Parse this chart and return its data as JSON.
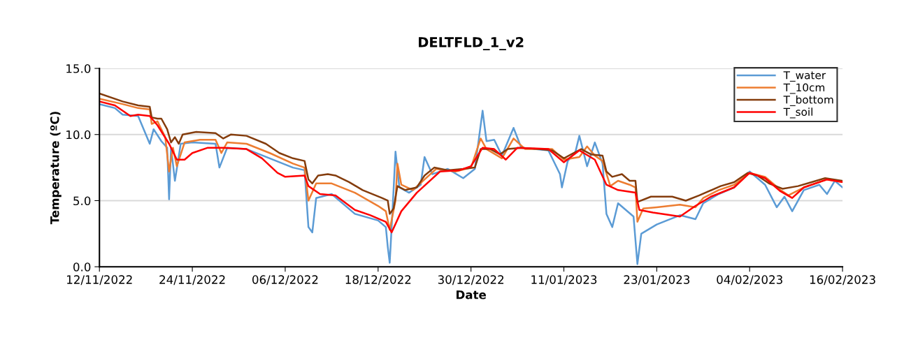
{
  "chart_data": {
    "type": "line",
    "title": "DELTFLD_1_v2",
    "xlabel": "Date",
    "ylabel": "Temperature (ºC)",
    "xlim": [
      "2022-11-12",
      "2023-02-16"
    ],
    "xticks": [
      {
        "value": "2022-11-12",
        "label": "12/11/2022"
      },
      {
        "value": "2022-11-24",
        "label": "24/11/2022"
      },
      {
        "value": "2022-12-06",
        "label": "06/12/2022"
      },
      {
        "value": "2022-12-18",
        "label": "18/12/2022"
      },
      {
        "value": "2022-12-30",
        "label": "30/12/2022"
      },
      {
        "value": "2023-01-11",
        "label": "11/01/2023"
      },
      {
        "value": "2023-01-23",
        "label": "23/01/2023"
      },
      {
        "value": "2023-02-04",
        "label": "04/02/2023"
      },
      {
        "value": "2023-02-16",
        "label": "16/02/2023"
      }
    ],
    "ylim": [
      0,
      15
    ],
    "yticks": [
      {
        "value": 0,
        "label": "0.0"
      },
      {
        "value": 5,
        "label": "5.0"
      },
      {
        "value": 10,
        "label": "10.0"
      },
      {
        "value": 15,
        "label": "15.0"
      }
    ],
    "grid": "y",
    "legend": "top right",
    "marker": "none",
    "line_style": "solid",
    "series": [
      {
        "name": "T_water",
        "color": "#5b9bd5",
        "x": [
          "2022-11-12",
          "2022-11-14",
          "2022-11-15",
          "2022-11-17",
          "2022-11-18T12:00",
          "2022-11-19",
          "2022-11-20",
          "2022-11-20T18:00",
          "2022-11-21",
          "2022-11-21T06:00",
          "2022-11-21T18:00",
          "2022-11-22T12:00",
          "2022-11-24",
          "2022-11-27",
          "2022-11-27T12:00",
          "2022-11-28T12:00",
          "2022-12-01",
          "2022-12-04",
          "2022-12-07",
          "2022-12-08T12:00",
          "2022-12-09",
          "2022-12-09T12:00",
          "2022-12-10",
          "2022-12-12",
          "2022-12-15",
          "2022-12-18",
          "2022-12-19",
          "2022-12-19T06:00",
          "2022-12-19T12:00",
          "2022-12-19T18:00",
          "2022-12-20T06:00",
          "2022-12-20T18:00",
          "2022-12-22",
          "2022-12-23T12:00",
          "2022-12-24",
          "2022-12-25",
          "2022-12-27",
          "2022-12-29",
          "2022-12-30T12:00",
          "2022-12-31T12:00",
          "2023-01-01",
          "2023-01-02",
          "2023-01-03",
          "2023-01-04T12:00",
          "2023-01-05T12:00",
          "2023-01-09",
          "2023-01-10T12:00",
          "2023-01-10T18:00",
          "2023-01-11T12:00",
          "2023-01-12T12:00",
          "2023-01-13",
          "2023-01-14",
          "2023-01-15",
          "2023-01-16",
          "2023-01-16T12:00",
          "2023-01-17T06:00",
          "2023-01-18",
          "2023-01-19",
          "2023-01-20",
          "2023-01-20T12:00",
          "2023-01-21",
          "2023-01-23",
          "2023-01-26",
          "2023-01-28",
          "2023-01-29",
          "2023-01-31",
          "2023-02-02",
          "2023-02-04",
          "2023-02-06",
          "2023-02-07T12:00",
          "2023-02-08T12:00",
          "2023-02-09T12:00",
          "2023-02-11",
          "2023-02-13",
          "2023-02-14",
          "2023-02-15",
          "2023-02-16"
        ],
        "values": [
          12.3,
          12.0,
          11.5,
          11.4,
          9.3,
          10.4,
          9.5,
          9.0,
          5.1,
          9.0,
          6.5,
          9.3,
          9.4,
          9.3,
          7.5,
          9.0,
          8.9,
          8.2,
          7.5,
          7.3,
          3.0,
          2.6,
          5.2,
          5.5,
          4.0,
          3.5,
          3.0,
          1.5,
          0.3,
          3.0,
          8.7,
          6.0,
          5.6,
          6.2,
          8.3,
          7.0,
          7.4,
          6.7,
          7.4,
          11.8,
          9.5,
          9.6,
          8.4,
          10.5,
          9.0,
          8.8,
          7.0,
          6.0,
          8.0,
          8.7,
          9.9,
          7.6,
          9.4,
          7.8,
          4.0,
          3.0,
          4.8,
          4.3,
          3.8,
          0.2,
          2.5,
          3.2,
          3.9,
          3.6,
          4.8,
          5.5,
          6.0,
          7.2,
          6.2,
          4.5,
          5.3,
          4.2,
          5.8,
          6.2,
          5.5,
          6.5,
          6.0
        ]
      },
      {
        "name": "T_10cm",
        "color": "#ed7d31",
        "x": [
          "2022-11-12",
          "2022-11-15",
          "2022-11-17",
          "2022-11-18T12:00",
          "2022-11-18T18:00",
          "2022-11-19T12:00",
          "2022-11-20T12:00",
          "2022-11-21",
          "2022-11-21T12:00",
          "2022-11-22",
          "2022-11-23",
          "2022-11-25",
          "2022-11-27",
          "2022-11-27T18:00",
          "2022-11-28T12:00",
          "2022-12-01",
          "2022-12-04",
          "2022-12-07",
          "2022-12-08T12:00",
          "2022-12-09",
          "2022-12-10",
          "2022-12-12",
          "2022-12-15",
          "2022-12-18",
          "2022-12-19",
          "2022-12-19T12:00",
          "2022-12-20T06:00",
          "2022-12-20T12:00",
          "2022-12-21",
          "2022-12-22T12:00",
          "2022-12-24",
          "2022-12-25T12:00",
          "2022-12-28",
          "2022-12-30",
          "2022-12-31T06:00",
          "2023-01-01",
          "2023-01-03",
          "2023-01-04T12:00",
          "2023-01-06",
          "2023-01-09T12:00",
          "2023-01-11",
          "2023-01-13",
          "2023-01-14",
          "2023-01-15",
          "2023-01-16",
          "2023-01-17",
          "2023-01-18",
          "2023-01-19T12:00",
          "2023-01-20T06:00",
          "2023-01-20T12:00",
          "2023-01-21T06:00",
          "2023-01-23",
          "2023-01-26",
          "2023-01-28",
          "2023-01-29",
          "2023-01-31",
          "2023-02-02",
          "2023-02-04",
          "2023-02-06",
          "2023-02-08",
          "2023-02-09",
          "2023-02-11",
          "2023-02-14",
          "2023-02-16"
        ],
        "values": [
          12.7,
          12.3,
          12.0,
          11.9,
          10.8,
          11.0,
          9.8,
          7.2,
          9.0,
          7.6,
          9.4,
          9.6,
          9.6,
          8.6,
          9.4,
          9.3,
          8.6,
          7.8,
          7.5,
          5.0,
          6.3,
          6.3,
          5.6,
          4.6,
          4.2,
          2.8,
          5.0,
          7.8,
          6.2,
          5.8,
          6.6,
          7.4,
          7.2,
          7.5,
          9.7,
          8.9,
          8.2,
          9.7,
          8.9,
          8.9,
          8.1,
          8.3,
          9.1,
          8.4,
          8.0,
          6.1,
          6.5,
          6.2,
          6.0,
          3.4,
          4.4,
          4.5,
          4.7,
          4.5,
          5.2,
          5.8,
          6.2,
          7.1,
          6.8,
          5.8,
          5.4,
          6.0,
          6.6,
          6.4
        ]
      },
      {
        "name": "T_bottom",
        "color": "#843c0c",
        "x": [
          "2022-11-12",
          "2022-11-15",
          "2022-11-17",
          "2022-11-18T12:00",
          "2022-11-18T18:00",
          "2022-11-19T12:00",
          "2022-11-20",
          "2022-11-20T18:00",
          "2022-11-21T06:00",
          "2022-11-21T18:00",
          "2022-11-22T06:00",
          "2022-11-22T18:00",
          "2022-11-24T12:00",
          "2022-11-27",
          "2022-11-28",
          "2022-11-29",
          "2022-12-01",
          "2022-12-03T12:00",
          "2022-12-05T06:00",
          "2022-12-07",
          "2022-12-08T12:00",
          "2022-12-09",
          "2022-12-09T12:00",
          "2022-12-10T06:00",
          "2022-12-11T12:00",
          "2022-12-12T12:00",
          "2022-12-14T06:00",
          "2022-12-16",
          "2022-12-18T12:00",
          "2022-12-19T06:00",
          "2022-12-19T12:00",
          "2022-12-20",
          "2022-12-20T12:00",
          "2022-12-21T12:00",
          "2022-12-23",
          "2022-12-24",
          "2022-12-25T06:00",
          "2022-12-27",
          "2022-12-29",
          "2022-12-30T12:00",
          "2022-12-31T06:00",
          "2023-01-01T12:00",
          "2023-01-02T18:00",
          "2023-01-03T18:00",
          "2023-01-05T12:00",
          "2023-01-07T18:00",
          "2023-01-09T12:00",
          "2023-01-11",
          "2023-01-12T06:00",
          "2023-01-13T06:00",
          "2023-01-14T12:00",
          "2023-01-16",
          "2023-01-16T12:00",
          "2023-01-17T06:00",
          "2023-01-18T12:00",
          "2023-01-19T12:00",
          "2023-01-20T06:00",
          "2023-01-20T12:00",
          "2023-01-22T06:00",
          "2023-01-25",
          "2023-01-26T18:00",
          "2023-01-28T12:00",
          "2023-01-31T06:00",
          "2023-02-02",
          "2023-02-03T18:00",
          "2023-02-05",
          "2023-02-06T12:00",
          "2023-02-08T06:00",
          "2023-02-10T06:00",
          "2023-02-12",
          "2023-02-13T18:00",
          "2023-02-16"
        ],
        "values": [
          13.1,
          12.5,
          12.2,
          12.1,
          11.3,
          11.2,
          11.2,
          10.4,
          9.4,
          9.8,
          9.3,
          10.0,
          10.2,
          10.1,
          9.7,
          10.0,
          9.9,
          9.3,
          8.6,
          8.2,
          8.0,
          6.6,
          6.3,
          6.9,
          7.0,
          6.9,
          6.4,
          5.8,
          5.2,
          5.0,
          4.0,
          4.4,
          6.1,
          5.8,
          6.0,
          6.9,
          7.5,
          7.3,
          7.4,
          7.5,
          8.9,
          8.9,
          8.5,
          8.9,
          9.0,
          8.9,
          8.8,
          8.2,
          8.6,
          8.9,
          8.5,
          8.4,
          7.2,
          6.8,
          7.0,
          6.5,
          6.5,
          4.9,
          5.3,
          5.3,
          5.0,
          5.4,
          6.1,
          6.4,
          7.1,
          6.9,
          6.3,
          5.9,
          6.1,
          6.4,
          6.7,
          6.5
        ]
      },
      {
        "name": "T_soil",
        "color": "#ff0000",
        "x": [
          "2022-11-12",
          "2022-11-14",
          "2022-11-16",
          "2022-11-17",
          "2022-11-18T12:00",
          "2022-11-19T12:00",
          "2022-11-21",
          "2022-11-22",
          "2022-11-23",
          "2022-11-24",
          "2022-11-26",
          "2022-11-28",
          "2022-12-01",
          "2022-12-03",
          "2022-12-05",
          "2022-12-06",
          "2022-12-08T12:00",
          "2022-12-09",
          "2022-12-10T12:00",
          "2022-12-12T12:00",
          "2022-12-15",
          "2022-12-17",
          "2022-12-19",
          "2022-12-19T18:00",
          "2022-12-21",
          "2022-12-23",
          "2022-12-26",
          "2022-12-28T12:00",
          "2022-12-30",
          "2022-12-31T12:00",
          "2023-01-02",
          "2023-01-03T12:00",
          "2023-01-05",
          "2023-01-09",
          "2023-01-11",
          "2023-01-13",
          "2023-01-15",
          "2023-01-16T12:00",
          "2023-01-18",
          "2023-01-20T06:00",
          "2023-01-20T18:00",
          "2023-01-22T12:00",
          "2023-01-26",
          "2023-01-28",
          "2023-01-30",
          "2023-02-02",
          "2023-02-04",
          "2023-02-06",
          "2023-02-08",
          "2023-02-09T12:00",
          "2023-02-11",
          "2023-02-14",
          "2023-02-16"
        ],
        "values": [
          12.5,
          12.2,
          11.4,
          11.5,
          11.4,
          10.7,
          9.3,
          8.1,
          8.1,
          8.6,
          9.0,
          9.0,
          8.9,
          8.2,
          7.1,
          6.8,
          6.9,
          6.1,
          5.5,
          5.4,
          4.3,
          3.9,
          3.4,
          2.6,
          4.2,
          5.6,
          7.2,
          7.3,
          7.6,
          9.0,
          8.9,
          8.1,
          9.0,
          8.9,
          7.9,
          8.8,
          8.1,
          6.2,
          5.8,
          5.6,
          4.3,
          4.1,
          3.8,
          4.6,
          5.3,
          6.0,
          7.1,
          6.7,
          5.7,
          5.2,
          6.0,
          6.6,
          6.4
        ]
      }
    ]
  }
}
